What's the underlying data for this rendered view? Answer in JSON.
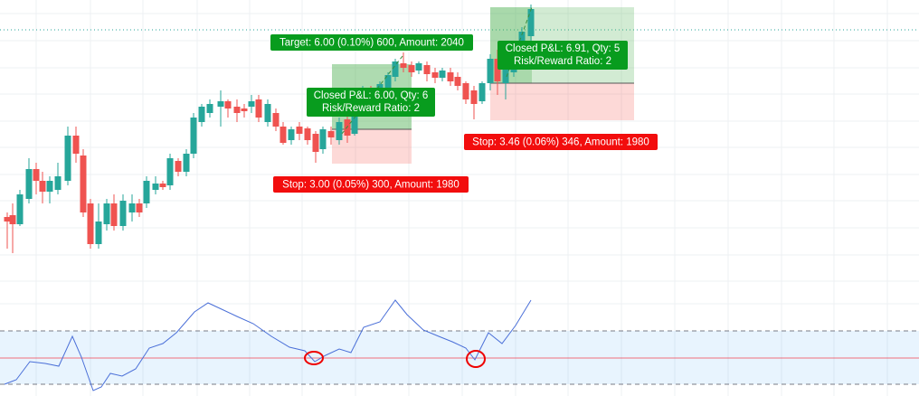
{
  "annotations": {
    "target_1": "Target: 6.00 (0.10%) 600, Amount: 2040",
    "closed_1": {
      "pnl": "Closed P&L: 6.00, Qty: 6",
      "ratio": "Risk/Reward Ratio: 2"
    },
    "stop_1": "Stop: 3.00 (0.05%) 300, Amount: 1980",
    "closed_2": {
      "pnl": "Closed P&L: 6.91, Qty: 5",
      "ratio": "Risk/Reward Ratio: 2"
    },
    "stop_2": "Stop: 3.46 (0.06%) 346, Amount: 1980"
  }
}
